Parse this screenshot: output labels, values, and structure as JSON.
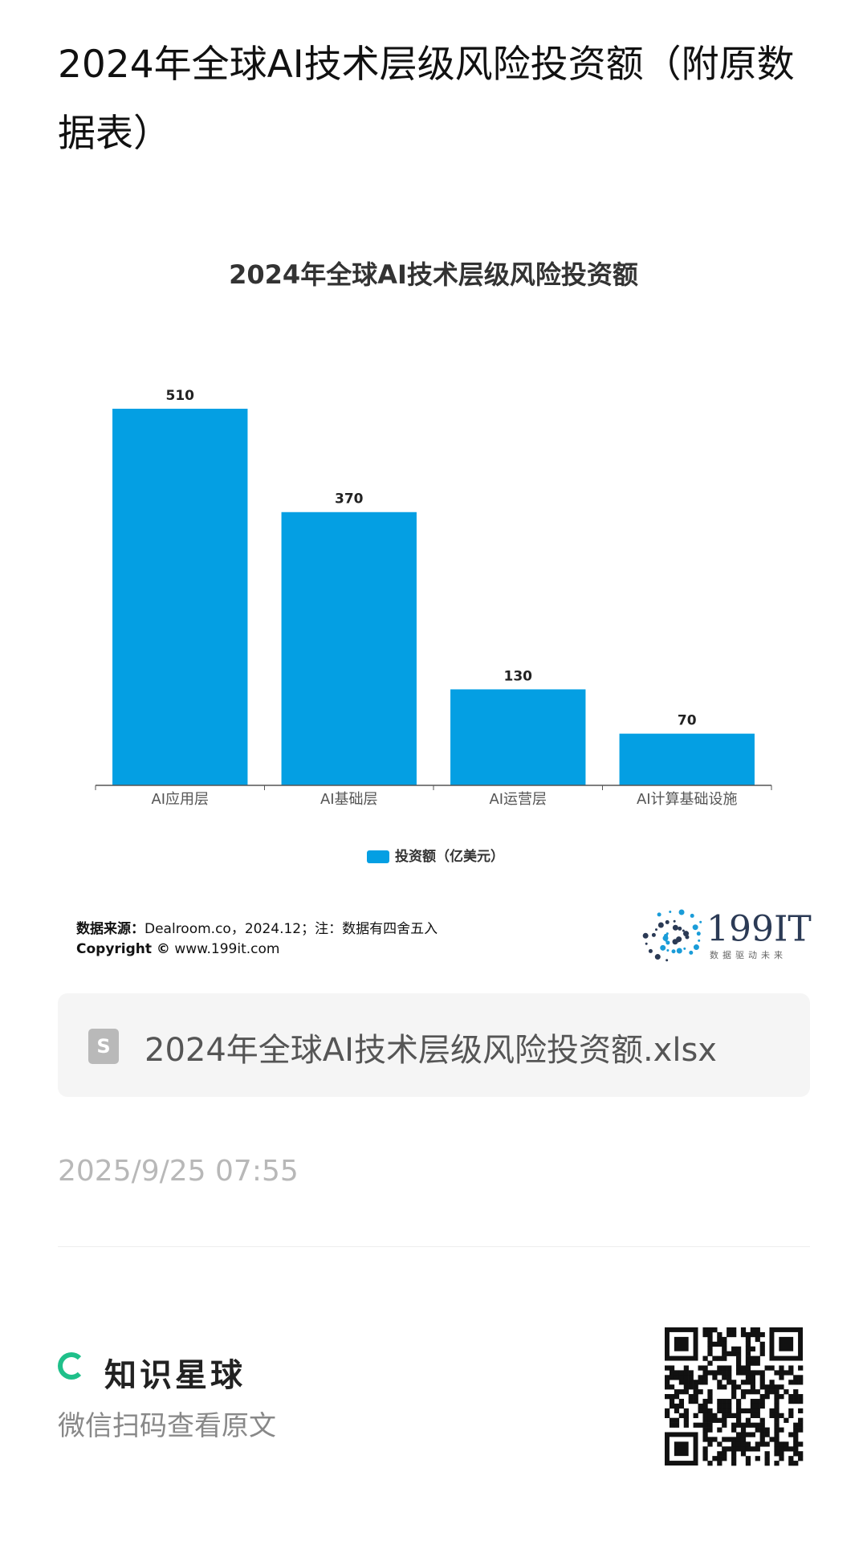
{
  "title": "2024年全球AI技术层级风险投资额（附原数据表）",
  "chart_data": {
    "type": "bar",
    "title": "2024年全球AI技术层级风险投资额",
    "categories": [
      "AI应用层",
      "AI基础层",
      "AI运营层",
      "AI计算基础设施"
    ],
    "series": [
      {
        "name": "投资额（亿美元）",
        "color": "#049fe3",
        "values": [
          510,
          370,
          130,
          70
        ]
      }
    ]
  },
  "source_label": "数据来源：",
  "source_text": "Dealroom.co，2024.12；注：数据有四舍五入",
  "copyright_label": "Copyright ©",
  "copyright_text": "www.199it.com",
  "logo": {
    "name": "199IT",
    "slogan": "数据驱动未来"
  },
  "file_name": "2024年全球AI技术层级风险投资额.xlsx",
  "date": "2025/9/25 07:55",
  "brand": "知识星球",
  "scan_hint": "微信扫码查看原文"
}
